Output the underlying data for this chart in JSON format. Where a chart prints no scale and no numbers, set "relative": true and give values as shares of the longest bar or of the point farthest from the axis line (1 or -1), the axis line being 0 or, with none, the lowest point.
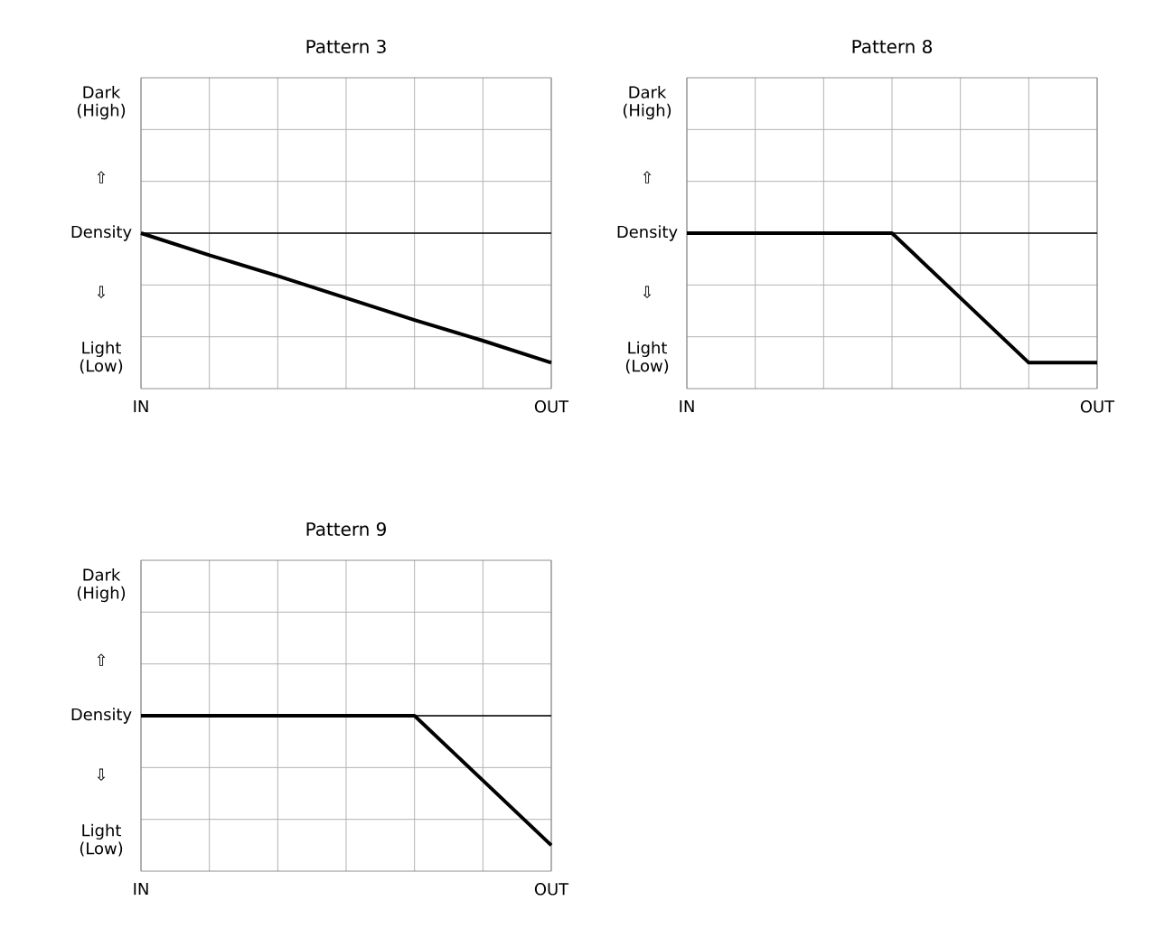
{
  "chart_data": [
    {
      "type": "line",
      "title": "Pattern 3",
      "categories": [
        "IN",
        null,
        null,
        null,
        null,
        null,
        "OUT"
      ],
      "values": [
        0,
        -0.17,
        -0.33,
        -0.5,
        -0.67,
        -0.83,
        -1
      ],
      "color": "#000000",
      "relative": true,
      "annotations": [
        "Dark (High)",
        "⇧",
        "Density",
        "⇩",
        "Light (Low)"
      ],
      "ref_lines": [
        {
          "axis": "y",
          "value": 0,
          "color": "#000000"
        }
      ],
      "grid": true
    },
    {
      "type": "line",
      "title": "Pattern 8",
      "categories": [
        "IN",
        null,
        null,
        null,
        null,
        null,
        "OUT"
      ],
      "values": [
        0,
        0,
        0,
        0,
        -0.5,
        -1,
        -1
      ],
      "color": "#000000",
      "relative": true,
      "annotations": [
        "Dark (High)",
        "⇧",
        "Density",
        "⇩",
        "Light (Low)"
      ],
      "ref_lines": [
        {
          "axis": "y",
          "value": 0,
          "color": "#000000"
        }
      ],
      "grid": true
    },
    {
      "type": "line",
      "title": "Pattern 9",
      "categories": [
        "IN",
        null,
        null,
        null,
        null,
        null,
        "OUT"
      ],
      "values": [
        0,
        0,
        0,
        0,
        0,
        -0.5,
        -1
      ],
      "color": "#000000",
      "relative": true,
      "annotations": [
        "Dark (High)",
        "⇧",
        "Density",
        "⇩",
        "Light (Low)"
      ],
      "ref_lines": [
        {
          "axis": "y",
          "value": 0,
          "color": "#000000"
        }
      ],
      "grid": true
    }
  ]
}
